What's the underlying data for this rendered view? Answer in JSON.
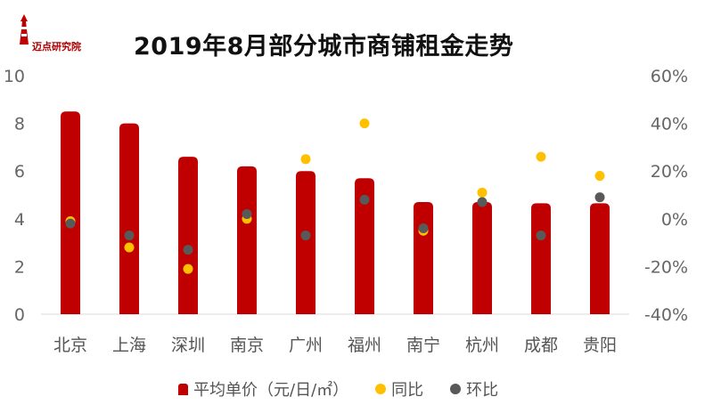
{
  "logo": {
    "text": "迈点研究院"
  },
  "colors": {
    "bar": "#c00000",
    "yoy": "#ffc000",
    "mom": "#595959"
  },
  "chart_data": {
    "type": "bar",
    "title": "2019年8月部分城市商铺租金走势",
    "categories": [
      "北京",
      "上海",
      "深圳",
      "南京",
      "广州",
      "福州",
      "南宁",
      "杭州",
      "成都",
      "贵阳"
    ],
    "left_axis": {
      "ylim": [
        0,
        10
      ],
      "ticks": [
        "0",
        "2",
        "4",
        "6",
        "8",
        "10"
      ]
    },
    "right_axis": {
      "ylim": [
        -40,
        60
      ],
      "ticks": [
        "-40%",
        "-20%",
        "0%",
        "20%",
        "40%",
        "60%"
      ]
    },
    "series": [
      {
        "name": "平均单价（元/日/㎡）",
        "type": "bar",
        "axis": "left",
        "values": [
          8.5,
          8.0,
          6.6,
          6.2,
          6.0,
          5.7,
          4.7,
          4.7,
          4.65,
          4.65
        ]
      },
      {
        "name": "同比",
        "type": "scatter",
        "axis": "right",
        "values": [
          -1,
          -12,
          -21,
          0,
          25,
          40,
          -5,
          11,
          26,
          18
        ]
      },
      {
        "name": "环比",
        "type": "scatter",
        "axis": "right",
        "values": [
          -2,
          -7,
          -13,
          2,
          -7,
          8,
          -4,
          7,
          -7,
          9
        ]
      }
    ]
  }
}
